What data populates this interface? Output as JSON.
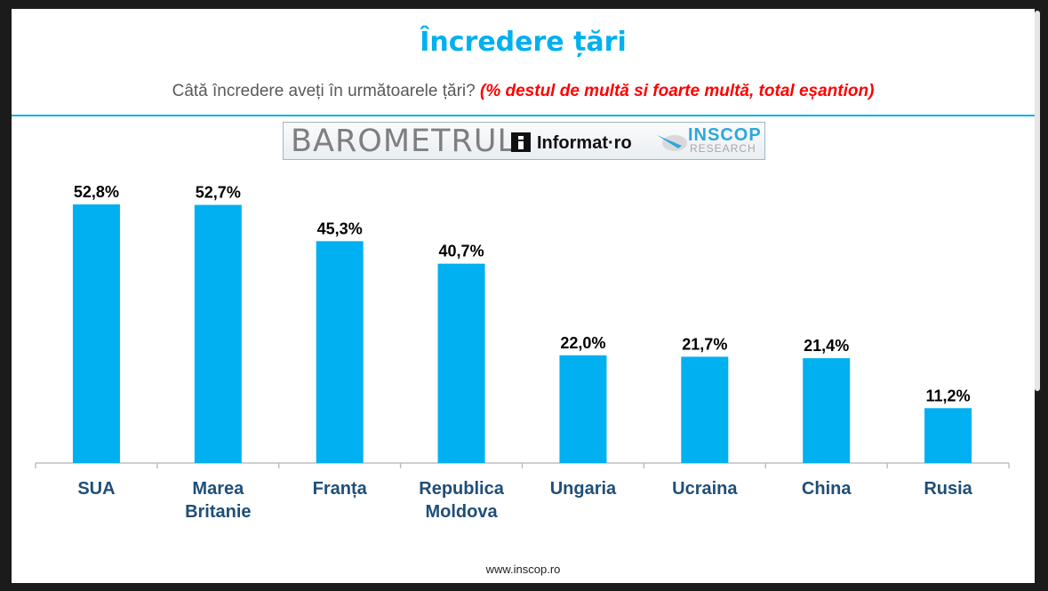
{
  "colors": {
    "accent": "#00b0f0",
    "category_text": "#1f4e79",
    "note_red": "#ff0000",
    "inscop_blue": "#2aa7de"
  },
  "header": {
    "title": "Încredere țări",
    "subtitle_plain": "Câtă încredere aveți în următoarele țări?",
    "subtitle_note": "(%  destul de multă si foarte multă,  total eșantion)"
  },
  "logo": {
    "barometrul": "BAROMETRUL",
    "informat": "Informat·ro",
    "inscop": "INSCOP",
    "research": "RESEARCH"
  },
  "chart_data": {
    "type": "bar",
    "categories": [
      "SUA",
      "Marea Britanie",
      "Franța",
      "Republica Moldova",
      "Ungaria",
      "Ucraina",
      "China",
      "Rusia"
    ],
    "category_lines": [
      [
        "SUA"
      ],
      [
        "Marea",
        "Britanie"
      ],
      [
        "Franța"
      ],
      [
        "Republica",
        "Moldova"
      ],
      [
        "Ungaria"
      ],
      [
        "Ucraina"
      ],
      [
        "China"
      ],
      [
        "Rusia"
      ]
    ],
    "values": [
      52.8,
      52.7,
      45.3,
      40.7,
      22.0,
      21.7,
      21.4,
      11.2
    ],
    "data_labels": [
      "52,8%",
      "52,7%",
      "45,3%",
      "40,7%",
      "22,0%",
      "21,7%",
      "21,4%",
      "11,2%"
    ],
    "ylim": [
      0,
      52.8
    ],
    "grid": false,
    "legend": "none"
  },
  "footer": {
    "url": "www.inscop.ro"
  }
}
